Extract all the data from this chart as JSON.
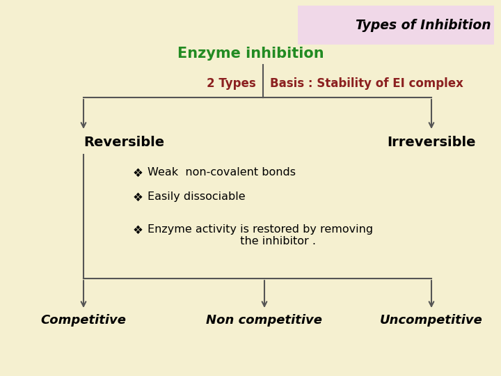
{
  "bg_color": "#f5f0d0",
  "title_box_color": "#f0d8e8",
  "title_text": "Types of Inhibition",
  "title_color": "#000000",
  "enzyme_text": "Enzyme inhibition",
  "enzyme_color": "#228B22",
  "two_types_text": "2 Types",
  "two_types_color": "#8B2020",
  "basis_text": "Basis : Stability of EI complex",
  "basis_color": "#8B2020",
  "reversible_text": "Reversible",
  "irreversible_text": "Irreversible",
  "node_color": "#000000",
  "bullet_points": [
    "Weak  non-covalent bonds",
    "Easily dissociable",
    "Enzyme activity is restored by removing\n                          the inhibitor ."
  ],
  "bottom_labels": [
    "Competitive",
    "Non competitive",
    "Uncompetitive"
  ],
  "line_color": "#555555"
}
